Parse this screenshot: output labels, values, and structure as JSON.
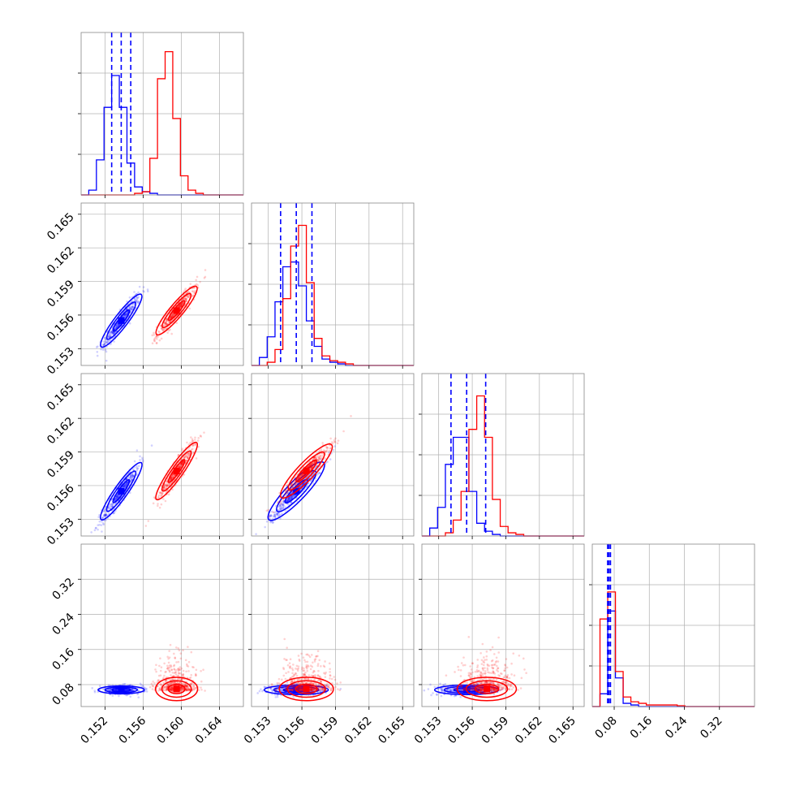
{
  "chart_data": {
    "type": "scatter",
    "title": "",
    "n_params": 4,
    "colors": {
      "blue": "#0000ff",
      "red": "#ff0000",
      "grid": "#b0b0b0",
      "frame": "#888888"
    },
    "series_colors": [
      "#0000ff",
      "#ff0000"
    ],
    "axes": [
      {
        "range": [
          0.1495,
          0.1665
        ],
        "ticks": [
          "0.152",
          "0.156",
          "0.160",
          "0.164"
        ]
      },
      {
        "range": [
          0.1515,
          0.166
        ],
        "ticks": [
          "0.153",
          "0.156",
          "0.159",
          "0.162",
          "0.165"
        ]
      },
      {
        "range": [
          0.1515,
          0.166
        ],
        "ticks": [
          "0.153",
          "0.156",
          "0.159",
          "0.162",
          "0.165"
        ]
      },
      {
        "range": [
          0.03,
          0.4
        ],
        "ticks": [
          "0.08",
          "0.16",
          "0.24",
          "0.32"
        ]
      }
    ],
    "quantiles": [
      [
        0.1527,
        0.1537,
        0.1547
      ],
      [
        0.1541,
        0.1555,
        0.1569
      ],
      [
        0.1541,
        0.1555,
        0.1572
      ],
      [
        0.065,
        0.068,
        0.0715
      ]
    ],
    "histograms": [
      {
        "start": 0.1495,
        "width": 0.0008,
        "series": [
          {
            "name": "",
            "counts": [
              0,
              0.03,
              0.22,
              0.55,
              0.75,
              0.55,
              0.2,
              0.05,
              0.02,
              0.01,
              0,
              0,
              0,
              0,
              0,
              0,
              0,
              0,
              0,
              0,
              0
            ]
          },
          {
            "name": "",
            "counts": [
              0,
              0,
              0,
              0,
              0,
              0,
              0,
              0.01,
              0.02,
              0.23,
              0.73,
              0.9,
              0.48,
              0.12,
              0.03,
              0.01,
              0,
              0,
              0,
              0,
              0
            ]
          }
        ]
      },
      {
        "start": 0.1515,
        "width": 0.0007,
        "series": [
          {
            "name": "",
            "counts": [
              0,
              0.05,
              0.18,
              0.4,
              0.62,
              0.65,
              0.5,
              0.28,
              0.12,
              0.04,
              0.02,
              0.01,
              0,
              0,
              0,
              0,
              0,
              0,
              0,
              0,
              0
            ]
          },
          {
            "name": "",
            "counts": [
              0,
              0,
              0.02,
              0.1,
              0.42,
              0.75,
              0.88,
              0.52,
              0.17,
              0.06,
              0.03,
              0.02,
              0.01,
              0,
              0,
              0,
              0,
              0,
              0,
              0,
              0
            ]
          }
        ]
      },
      {
        "start": 0.1515,
        "width": 0.0007,
        "series": [
          {
            "name": "",
            "counts": [
              0,
              0.05,
              0.18,
              0.45,
              0.62,
              0.62,
              0.28,
              0.08,
              0.03,
              0.01,
              0,
              0,
              0,
              0,
              0,
              0,
              0,
              0,
              0,
              0,
              0
            ]
          },
          {
            "name": "",
            "counts": [
              0,
              0,
              0,
              0.02,
              0.1,
              0.28,
              0.67,
              0.88,
              0.62,
              0.23,
              0.06,
              0.02,
              0.01,
              0,
              0,
              0,
              0,
              0,
              0,
              0,
              0
            ]
          }
        ]
      },
      {
        "start": 0.03,
        "width": 0.0176,
        "series": [
          {
            "name": "",
            "counts": [
              0,
              0.08,
              0.6,
              0.18,
              0.02,
              0.01,
              0,
              0,
              0,
              0,
              0,
              0,
              0,
              0,
              0,
              0,
              0,
              0,
              0,
              0,
              0
            ]
          },
          {
            "name": "",
            "counts": [
              0,
              0.55,
              0.72,
              0.22,
              0.06,
              0.03,
              0.02,
              0.01,
              0.01,
              0.01,
              0.01,
              0.005,
              0,
              0,
              0,
              0,
              0,
              0,
              0,
              0,
              0
            ]
          }
        ]
      }
    ],
    "pairs": [
      {
        "row": 1,
        "col": 0,
        "series": [
          {
            "mean": [
              0.1537,
              0.1555
            ],
            "sd": [
              0.001,
              0.0012
            ],
            "corr": 0.93,
            "n": 420
          },
          {
            "mean": [
              0.1595,
              0.1564
            ],
            "sd": [
              0.001,
              0.0011
            ],
            "corr": 0.93,
            "n": 420
          }
        ]
      },
      {
        "row": 2,
        "col": 0,
        "series": [
          {
            "mean": [
              0.1537,
              0.1555
            ],
            "sd": [
              0.001,
              0.0013
            ],
            "corr": 0.93,
            "n": 420
          },
          {
            "mean": [
              0.1595,
              0.1573
            ],
            "sd": [
              0.001,
              0.0013
            ],
            "corr": 0.93,
            "n": 420
          }
        ]
      },
      {
        "row": 2,
        "col": 1,
        "series": [
          {
            "mean": [
              0.1555,
              0.1555
            ],
            "sd": [
              0.0012,
              0.0013
            ],
            "corr": 0.96,
            "n": 420
          },
          {
            "mean": [
              0.1564,
              0.1573
            ],
            "sd": [
              0.0011,
              0.0012
            ],
            "corr": 0.96,
            "n": 420
          }
        ]
      },
      {
        "row": 3,
        "col": 0,
        "series": [
          {
            "mean": [
              0.1537,
              0.068
            ],
            "sd": [
              0.0011,
              0.005
            ],
            "corr": 0.0,
            "n": 380
          },
          {
            "mean": [
              0.1595,
              0.07
            ],
            "sd": [
              0.001,
              0.04
            ],
            "corr": 0.0,
            "n": 480
          }
        ]
      },
      {
        "row": 3,
        "col": 1,
        "series": [
          {
            "mean": [
              0.1555,
              0.068
            ],
            "sd": [
              0.0013,
              0.006
            ],
            "corr": 0.0,
            "n": 380
          },
          {
            "mean": [
              0.1564,
              0.07
            ],
            "sd": [
              0.0011,
              0.04
            ],
            "corr": 0.0,
            "n": 480
          }
        ]
      },
      {
        "row": 3,
        "col": 2,
        "series": [
          {
            "mean": [
              0.1555,
              0.068
            ],
            "sd": [
              0.0013,
              0.006
            ],
            "corr": 0.0,
            "n": 380
          },
          {
            "mean": [
              0.1573,
              0.07
            ],
            "sd": [
              0.0012,
              0.04
            ],
            "corr": 0.0,
            "n": 480
          }
        ]
      }
    ],
    "grid": true,
    "xlabel": "",
    "ylabel": ""
  }
}
